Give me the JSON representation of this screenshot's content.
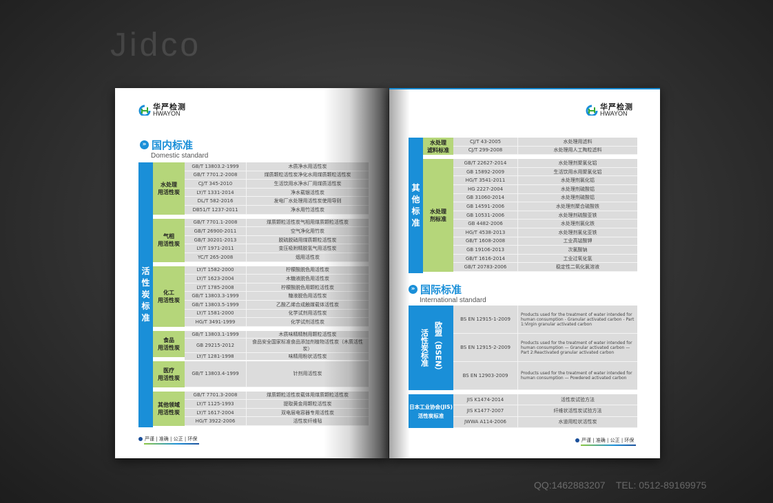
{
  "watermark": {
    "brand": "Jidco",
    "contact": "QQ:1462883207    TEL: 0512-89169975"
  },
  "logo": {
    "cn": "华严检测",
    "en": "HWAYON"
  },
  "footer": "严谨 | 准确 | 公正 | 环保",
  "colors": {
    "blue": "#1a8fd8",
    "green": "#b5d67a",
    "row": "#dcdcdc"
  },
  "left": {
    "title": "国内标准",
    "subtitle": "Domestic standard",
    "category": "活性炭标准",
    "groups": [
      {
        "label": "水处理\n用活性炭",
        "rows": [
          [
            "GB/T 13803.2-1999",
            "木质净水用活性炭"
          ],
          [
            "GB/T 7701.2-2008",
            "煤质颗粒活性炭净化水用煤质颗粒活性炭"
          ],
          [
            "CJ/T 345-2010",
            "生活饮用水净水厂用煤质活性炭"
          ],
          [
            "LY/T 1331-2014",
            "净水载银活性炭"
          ],
          [
            "DL/T 582-2016",
            "发电厂水处理用活性炭使用导则"
          ],
          [
            "DB51/T 1237-2011",
            "净水用竹活性炭"
          ]
        ]
      },
      {
        "label": "气相\n用活性炭",
        "rows": [
          [
            "GB/T 7701.1-2008",
            "煤质颗粒活性炭气相用煤质颗粒活性炭"
          ],
          [
            "GB/T 26900-2011",
            "空气净化用竹炭"
          ],
          [
            "GB/T 30201-2013",
            "脱硫脱硝用煤质颗粒活性炭"
          ],
          [
            "LY/T 1971-2011",
            "变压吸附精脱氢气用活性炭"
          ],
          [
            "YC/T 265-2008",
            "烟用活性炭"
          ]
        ]
      },
      {
        "label": "化工\n用活性炭",
        "rows": [
          [
            "LY/T 1582-2000",
            "柠檬酸脱色用活性炭"
          ],
          [
            "LY/T 1623-2004",
            "木糖液脱色用活性炭"
          ],
          [
            "LY/T 1785-2008",
            "柠檬酸脱色用颗粒活性炭"
          ],
          [
            "GB/T 13803.3-1999",
            "糖液脱色用活性炭"
          ],
          [
            "GB/T 13803.5-1999",
            "乙酸乙烯合成触媒载体活性炭"
          ],
          [
            "LY/T 1581-2000",
            "化学试剂用活性炭"
          ],
          [
            "HG/T 3491-1999",
            "化学试剂活性炭"
          ]
        ]
      },
      {
        "label": "食品\n用活性炭",
        "rows": [
          [
            "GB/T 13803.1-1999",
            "木质味精精制用颗粒活性炭"
          ],
          [
            "GB 29215-2012",
            "食品安全国家标准食品添加剂植物活性炭（木质活性炭）"
          ],
          [
            "LY/T 1281-1998",
            "味精用粉状活性炭"
          ]
        ]
      },
      {
        "label": "医疗\n用活性炭",
        "rows": [
          [
            "GB/T 13803.4-1999",
            "针剂用活性炭"
          ]
        ]
      },
      {
        "label": "其他领域\n用活性炭",
        "rows": [
          [
            "GB/T 7701.3-2008",
            "煤质颗粒活性炭载体用煤质颗粒活性炭"
          ],
          [
            "LY/T 1125-1993",
            "提取黄金用颗粒活性炭"
          ],
          [
            "LY/T 1617-2004",
            "双电层电容器专用活性炭"
          ],
          [
            "HG/T 3922-2006",
            "活性炭纤维毡"
          ]
        ]
      }
    ]
  },
  "right": {
    "category": "其他标准",
    "groups": [
      {
        "label": "水处理\n滤料标准",
        "rows": [
          [
            "CJ/T 43-2005",
            "水处理用滤料"
          ],
          [
            "CJ/T 299-2008",
            "水处理用人工陶粒滤料"
          ]
        ]
      },
      {
        "label": "水处理\n剂标准",
        "rows": [
          [
            "GB/T 22627-2014",
            "水处理剂聚氯化铝"
          ],
          [
            "GB 15892-2009",
            "生活饮用水用聚氯化铝"
          ],
          [
            "HG/T 3541-2011",
            "水处理剂氯化铝"
          ],
          [
            "HG 2227-2004",
            "水处理剂硫酸铝"
          ],
          [
            "GB 31060-2014",
            "水处理剂硫酸铝"
          ],
          [
            "GB 14591-2006",
            "水处理剂聚合硫酸铁"
          ],
          [
            "GB 10531-2006",
            "水处理剂硫酸亚铁"
          ],
          [
            "GB 4482-2006",
            "水处理剂氯化铁"
          ],
          [
            "HG/T 4538-2013",
            "水处理剂氯化亚铁"
          ],
          [
            "GB/T 1608-2008",
            "工业高锰酸钾"
          ],
          [
            "GB 19106-2013",
            "次氯酸钠"
          ],
          [
            "GB/T 1616-2014",
            "工业过氧化氢"
          ],
          [
            "GB/T 20783-2006",
            "稳定性二氧化氯溶液"
          ]
        ]
      }
    ],
    "intl_title": "国际标准",
    "intl_subtitle": "International standard",
    "bsen": {
      "label1": "欧盟（BSEN）",
      "label2": "活性炭标准",
      "rows": [
        [
          "BS EN 12915-1-2009",
          "Products used for the treatment of water intended for human consumption - Granular activated carbon - Part 1:Virgin granular activated carbon"
        ],
        [
          "BS EN 12915-2-2009",
          "Products used for the treatment of water intended for human consumption — Granular activated carbon — Part 2:Reactivated granular activated carbon"
        ],
        [
          "BS EN 12903-2009",
          "Products used for the treatment of water intended for human consumption — Powdered activated carbon"
        ]
      ]
    },
    "jis": {
      "label": "日本工业协会(JIS)\n活性炭标准",
      "rows": [
        [
          "JIS K1474-2014",
          "活性炭试验方法"
        ],
        [
          "JIS K1477-2007",
          "纤维状活性炭试验方法"
        ],
        [
          "JWWA A114-2006",
          "水道用粒状活性炭"
        ]
      ]
    }
  }
}
